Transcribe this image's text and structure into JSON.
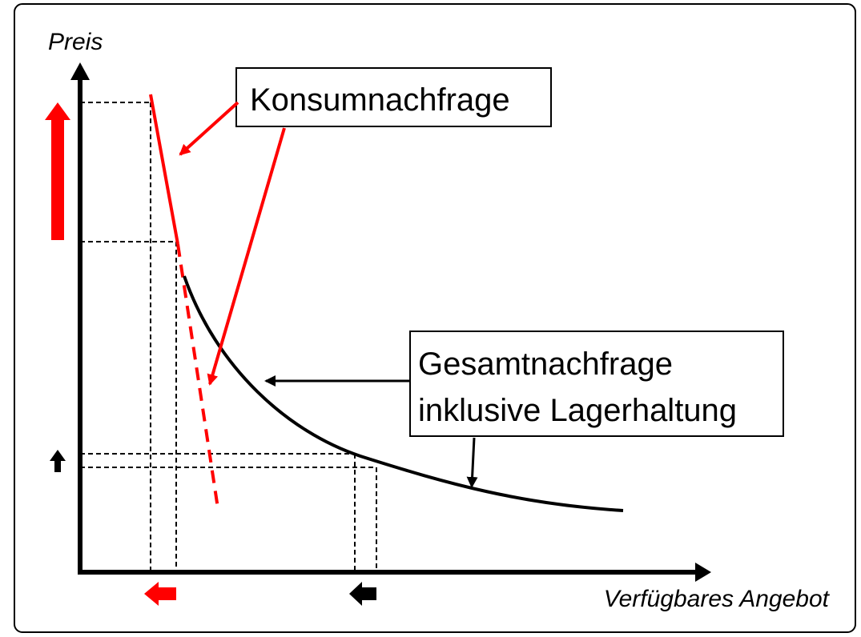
{
  "axes": {
    "y_label": "Preis",
    "x_label": "Verfügbares Angebot"
  },
  "labels": {
    "consumption": "Konsumnachfrage",
    "total": [
      "Gesamtnachfrage",
      "inklusive Lagerhaltung"
    ]
  }
}
